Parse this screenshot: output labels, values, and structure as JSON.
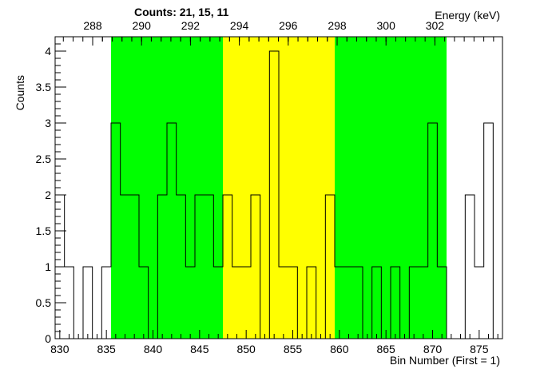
{
  "chart_data": {
    "type": "histogram",
    "header_text": "Counts:   21,   15,   11",
    "xlabel": "Bin Number (First = 1)",
    "ylabel": "Counts",
    "top_axis_label": "Energy (keV)",
    "xlim": [
      829.5,
      877.5
    ],
    "ylim": [
      0,
      4.2
    ],
    "x_ticks": [
      830,
      835,
      840,
      845,
      850,
      855,
      860,
      865,
      870,
      875
    ],
    "y_ticks": [
      0,
      0.5,
      1,
      1.5,
      2,
      2.5,
      3,
      3.5,
      4
    ],
    "y_tick_labels": [
      "0",
      "0.5",
      "1",
      "1.5",
      "2",
      "2.5",
      "3",
      "3.5",
      "4"
    ],
    "top_ticks": [
      "288",
      "290",
      "292",
      "294",
      "296",
      "298",
      "300",
      "302"
    ],
    "regions": [
      {
        "from": 836,
        "to": 848,
        "color": "#00ff00"
      },
      {
        "from": 848,
        "to": 860,
        "color": "#ffff00"
      },
      {
        "from": 860,
        "to": 872,
        "color": "#00ff00"
      }
    ],
    "bins": [
      {
        "x": 830,
        "value": 2
      },
      {
        "x": 831,
        "value": 1
      },
      {
        "x": 832,
        "value": 0
      },
      {
        "x": 833,
        "value": 1
      },
      {
        "x": 834,
        "value": 0
      },
      {
        "x": 835,
        "value": 1
      },
      {
        "x": 836,
        "value": 3
      },
      {
        "x": 837,
        "value": 2
      },
      {
        "x": 838,
        "value": 2
      },
      {
        "x": 839,
        "value": 1
      },
      {
        "x": 840,
        "value": 0
      },
      {
        "x": 841,
        "value": 2
      },
      {
        "x": 842,
        "value": 3
      },
      {
        "x": 843,
        "value": 2
      },
      {
        "x": 844,
        "value": 1
      },
      {
        "x": 845,
        "value": 2
      },
      {
        "x": 846,
        "value": 2
      },
      {
        "x": 847,
        "value": 1
      },
      {
        "x": 848,
        "value": 2
      },
      {
        "x": 849,
        "value": 1
      },
      {
        "x": 850,
        "value": 1
      },
      {
        "x": 851,
        "value": 2
      },
      {
        "x": 852,
        "value": 0
      },
      {
        "x": 853,
        "value": 4
      },
      {
        "x": 854,
        "value": 1
      },
      {
        "x": 855,
        "value": 1
      },
      {
        "x": 856,
        "value": 0
      },
      {
        "x": 857,
        "value": 1
      },
      {
        "x": 858,
        "value": 0
      },
      {
        "x": 859,
        "value": 2
      },
      {
        "x": 860,
        "value": 1
      },
      {
        "x": 861,
        "value": 1
      },
      {
        "x": 862,
        "value": 1
      },
      {
        "x": 863,
        "value": 0
      },
      {
        "x": 864,
        "value": 1
      },
      {
        "x": 865,
        "value": 0
      },
      {
        "x": 866,
        "value": 1
      },
      {
        "x": 867,
        "value": 0
      },
      {
        "x": 868,
        "value": 1
      },
      {
        "x": 869,
        "value": 1
      },
      {
        "x": 870,
        "value": 3
      },
      {
        "x": 871,
        "value": 1
      },
      {
        "x": 872,
        "value": 0
      },
      {
        "x": 873,
        "value": 0
      },
      {
        "x": 874,
        "value": 2
      },
      {
        "x": 875,
        "value": 1
      },
      {
        "x": 876,
        "value": 3
      }
    ]
  }
}
